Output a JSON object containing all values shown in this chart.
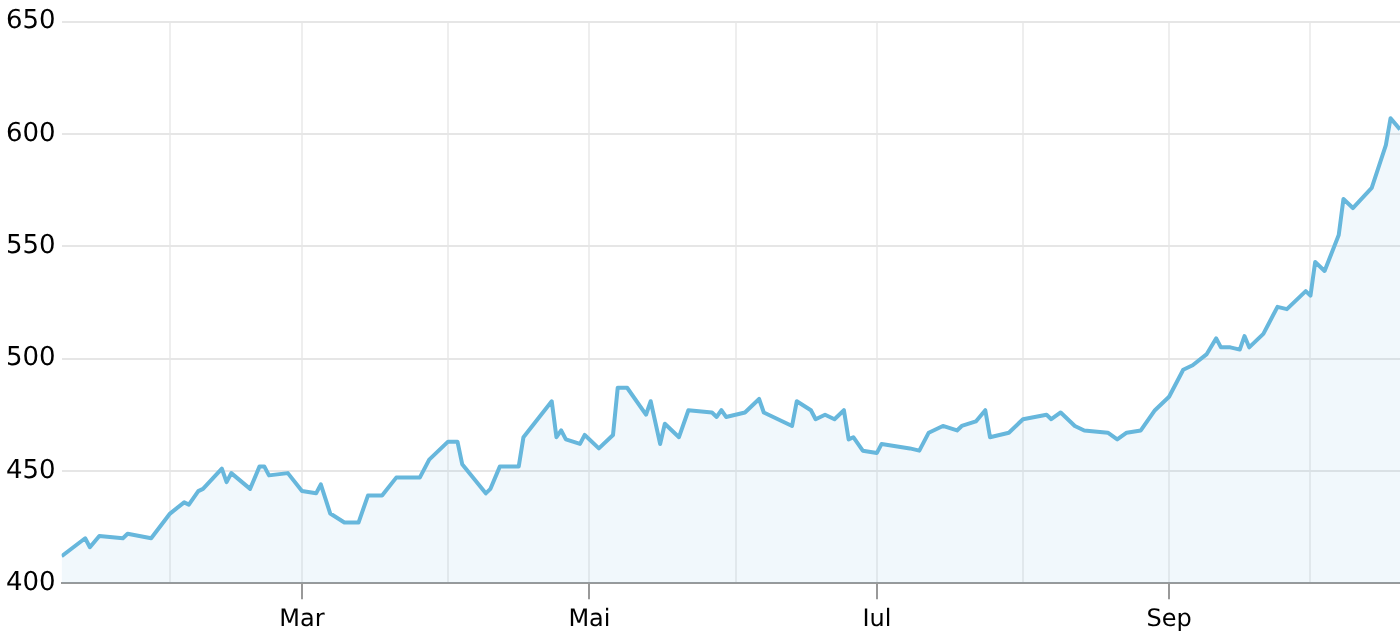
{
  "chart_data": {
    "type": "area",
    "x": [
      "--01-09",
      "--01-14",
      "--01-15",
      "--01-17",
      "--01-22",
      "--01-23",
      "--01-28",
      "--02-01",
      "--02-04",
      "--02-05",
      "--02-07",
      "--02-08",
      "--02-12",
      "--02-13",
      "--02-14",
      "--02-18",
      "--02-20",
      "--02-21",
      "--02-22",
      "--02-26",
      "--03-01",
      "--03-04",
      "--03-05",
      "--03-07",
      "--03-10",
      "--03-13",
      "--03-15",
      "--03-18",
      "--03-21",
      "--03-22",
      "--03-26",
      "--03-28",
      "--04-01",
      "--04-03",
      "--04-04",
      "--04-09",
      "--04-10",
      "--04-12",
      "--04-16",
      "--04-17",
      "--04-23",
      "--04-24",
      "--04-25",
      "--04-26",
      "--04-29",
      "--04-30",
      "--05-03",
      "--05-06",
      "--05-07",
      "--05-09",
      "--05-13",
      "--05-14",
      "--05-16",
      "--05-17",
      "--05-20",
      "--05-22",
      "--05-27",
      "--05-28",
      "--05-29",
      "--05-30",
      "--06-03",
      "--06-06",
      "--06-07",
      "--06-13",
      "--06-14",
      "--06-17",
      "--06-18",
      "--06-20",
      "--06-22",
      "--06-24",
      "--06-25",
      "--06-26",
      "--06-28",
      "--07-01",
      "--07-02",
      "--07-08",
      "--07-10",
      "--07-12",
      "--07-15",
      "--07-18",
      "--07-19",
      "--07-22",
      "--07-24",
      "--07-25",
      "--07-29",
      "--08-01",
      "--08-06",
      "--08-07",
      "--08-09",
      "--08-12",
      "--08-14",
      "--08-19",
      "--08-21",
      "--08-23",
      "--08-26",
      "--08-28",
      "--08-29",
      "--09-01",
      "--09-04",
      "--09-06",
      "--09-09",
      "--09-11",
      "--09-12",
      "--09-14",
      "--09-16",
      "--09-17",
      "--09-18",
      "--09-21",
      "--09-24",
      "--09-26",
      "--09-30",
      "--10-01",
      "--10-02",
      "--10-04",
      "--10-07",
      "--10-08",
      "--10-10",
      "--10-14",
      "--10-17",
      "--10-18",
      "--10-20"
    ],
    "series": [
      {
        "color": "#67b7dc",
        "values": [
          412,
          420,
          416,
          421,
          420,
          422,
          420,
          431,
          436,
          435,
          441,
          442,
          451,
          445,
          449,
          442,
          452,
          452,
          448,
          449,
          441,
          440,
          444,
          431,
          427,
          427,
          439,
          439,
          447,
          447,
          447,
          455,
          463,
          463,
          453,
          440,
          442,
          452,
          452,
          465,
          481,
          465,
          468,
          464,
          462,
          466,
          460,
          466,
          487,
          487,
          475,
          481,
          462,
          471,
          465,
          477,
          476,
          474,
          477,
          474,
          476,
          482,
          476,
          470,
          481,
          477,
          473,
          475,
          473,
          477,
          464,
          465,
          459,
          458,
          462,
          460,
          459,
          467,
          470,
          468,
          470,
          472,
          477,
          465,
          467,
          473,
          475,
          473,
          476,
          470,
          468,
          467,
          464,
          467,
          468,
          474,
          477,
          483,
          495,
          497,
          502,
          509,
          505,
          505,
          504,
          510,
          505,
          511,
          523,
          522,
          530,
          528,
          543,
          539,
          555,
          571,
          567,
          576,
          595,
          607,
          602
        ]
      }
    ],
    "xlim": [
      "--01-09",
      "--10-20"
    ],
    "xticks": [
      {
        "value": "--02-01",
        "label": null
      },
      {
        "value": "--03-01",
        "label": "Mar"
      },
      {
        "value": "--04-01",
        "label": null
      },
      {
        "value": "--05-01",
        "label": "Mai"
      },
      {
        "value": "--06-01",
        "label": null
      },
      {
        "value": "--07-01",
        "label": "Iul"
      },
      {
        "value": "--08-01",
        "label": null
      },
      {
        "value": "--09-01",
        "label": "Sep"
      },
      {
        "value": "--10-01",
        "label": null
      }
    ],
    "ylim": [
      400,
      650
    ],
    "yticks": [
      400,
      450,
      500,
      550,
      600,
      650
    ],
    "grid": true
  }
}
